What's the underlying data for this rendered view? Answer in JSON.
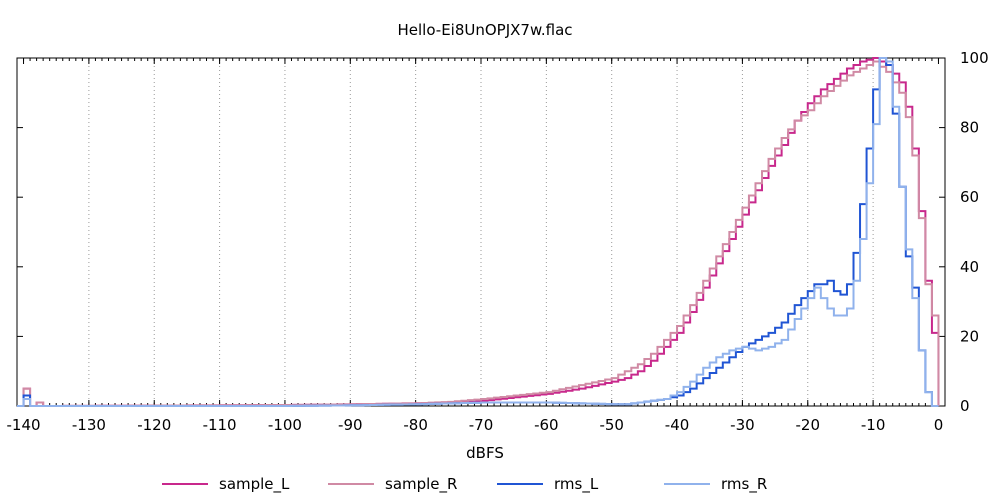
{
  "chart_data": {
    "type": "line",
    "title": "Hello-Ei8UnOPJX7w.flac",
    "xlabel": "dBFS",
    "ylabel": "",
    "xlim": [
      -141,
      1
    ],
    "ylim": [
      0,
      100
    ],
    "x_ticks": [
      -140,
      -130,
      -120,
      -110,
      -100,
      -90,
      -80,
      -70,
      -60,
      -50,
      -40,
      -30,
      -20,
      -10,
      0
    ],
    "x_tick_labels": [
      "-140",
      "-130",
      "-120",
      "-110",
      "-100",
      "-90",
      "-80",
      "-70",
      "-60",
      "-50",
      "-40",
      "-30",
      "-20",
      "-10",
      "0"
    ],
    "y_ticks": [
      0,
      20,
      40,
      60,
      80,
      100
    ],
    "y_tick_labels": [
      "0",
      "20",
      "40",
      "60",
      "80",
      "100"
    ],
    "y_axis_side": "right",
    "grid": "vertical-dotted",
    "legend_position": "bottom",
    "step_width": 1,
    "series": [
      {
        "name": "sample_L",
        "color": "#c8288c",
        "points": [
          [
            -141,
            0
          ],
          [
            -140,
            5
          ],
          [
            -139,
            0
          ],
          [
            -138,
            1
          ],
          [
            -137,
            0
          ],
          [
            -110,
            0.2
          ],
          [
            -100,
            0.3
          ],
          [
            -90,
            0.5
          ],
          [
            -80,
            0.8
          ],
          [
            -75,
            1
          ],
          [
            -70,
            1.5
          ],
          [
            -65,
            2.5
          ],
          [
            -60,
            3.5
          ],
          [
            -55,
            5
          ],
          [
            -50,
            7
          ],
          [
            -48,
            8
          ],
          [
            -46,
            10
          ],
          [
            -44,
            13
          ],
          [
            -42,
            17
          ],
          [
            -40,
            21
          ],
          [
            -38,
            27
          ],
          [
            -36,
            34
          ],
          [
            -34,
            41
          ],
          [
            -32,
            48
          ],
          [
            -30,
            55
          ],
          [
            -28,
            62
          ],
          [
            -26,
            69
          ],
          [
            -24,
            75
          ],
          [
            -22,
            82
          ],
          [
            -20,
            87
          ],
          [
            -18,
            91
          ],
          [
            -16,
            94
          ],
          [
            -14,
            97
          ],
          [
            -12,
            99
          ],
          [
            -10,
            100
          ],
          [
            -8,
            98
          ],
          [
            -6,
            93
          ],
          [
            -5,
            86
          ],
          [
            -4,
            74
          ],
          [
            -3,
            56
          ],
          [
            -2,
            36
          ],
          [
            -1,
            21
          ],
          [
            0,
            0
          ]
        ]
      },
      {
        "name": "sample_R",
        "color": "#d08aa4",
        "points": [
          [
            -141,
            0
          ],
          [
            -140,
            5
          ],
          [
            -139,
            0
          ],
          [
            -138,
            1
          ],
          [
            -137,
            0
          ],
          [
            -110,
            0.2
          ],
          [
            -100,
            0.3
          ],
          [
            -90,
            0.5
          ],
          [
            -80,
            0.8
          ],
          [
            -75,
            1.2
          ],
          [
            -70,
            2
          ],
          [
            -65,
            3
          ],
          [
            -60,
            4
          ],
          [
            -55,
            6
          ],
          [
            -50,
            8
          ],
          [
            -48,
            10
          ],
          [
            -46,
            12
          ],
          [
            -44,
            15
          ],
          [
            -42,
            19
          ],
          [
            -40,
            23
          ],
          [
            -38,
            29
          ],
          [
            -36,
            36
          ],
          [
            -34,
            43
          ],
          [
            -32,
            50
          ],
          [
            -30,
            57
          ],
          [
            -28,
            64
          ],
          [
            -26,
            71
          ],
          [
            -24,
            77
          ],
          [
            -22,
            82
          ],
          [
            -20,
            85
          ],
          [
            -18,
            89
          ],
          [
            -16,
            92
          ],
          [
            -14,
            95
          ],
          [
            -12,
            97
          ],
          [
            -10,
            99
          ],
          [
            -8,
            96
          ],
          [
            -6,
            90
          ],
          [
            -5,
            83
          ],
          [
            -4,
            72
          ],
          [
            -3,
            54
          ],
          [
            -2,
            35
          ],
          [
            -1,
            26
          ],
          [
            0,
            0
          ]
        ]
      },
      {
        "name": "rms_L",
        "color": "#2055d4",
        "points": [
          [
            -141,
            0
          ],
          [
            -140,
            3
          ],
          [
            -139,
            0
          ],
          [
            -120,
            0
          ],
          [
            -100,
            0
          ],
          [
            -90,
            0.2
          ],
          [
            -80,
            0.5
          ],
          [
            -70,
            1
          ],
          [
            -60,
            1
          ],
          [
            -50,
            0.5
          ],
          [
            -48,
            0.5
          ],
          [
            -46,
            1
          ],
          [
            -44,
            1.5
          ],
          [
            -42,
            2
          ],
          [
            -40,
            3
          ],
          [
            -38,
            5
          ],
          [
            -36,
            8
          ],
          [
            -34,
            11
          ],
          [
            -32,
            14
          ],
          [
            -30,
            17
          ],
          [
            -28,
            19
          ],
          [
            -26,
            21
          ],
          [
            -24,
            24
          ],
          [
            -22,
            29
          ],
          [
            -20,
            33
          ],
          [
            -19,
            35
          ],
          [
            -18,
            35
          ],
          [
            -17,
            36
          ],
          [
            -16,
            33
          ],
          [
            -15,
            32
          ],
          [
            -14,
            35
          ],
          [
            -13,
            44
          ],
          [
            -12,
            58
          ],
          [
            -11,
            74
          ],
          [
            -10,
            91
          ],
          [
            -9,
            100
          ],
          [
            -8,
            98
          ],
          [
            -7,
            84
          ],
          [
            -6,
            63
          ],
          [
            -5,
            43
          ],
          [
            -4,
            34
          ],
          [
            -3,
            16
          ],
          [
            -2,
            4
          ],
          [
            -1,
            0
          ],
          [
            0,
            0
          ]
        ]
      },
      {
        "name": "rms_R",
        "color": "#90b2ec",
        "points": [
          [
            -141,
            0
          ],
          [
            -140,
            2
          ],
          [
            -139,
            0
          ],
          [
            -120,
            0
          ],
          [
            -100,
            0
          ],
          [
            -90,
            0.2
          ],
          [
            -80,
            0.5
          ],
          [
            -70,
            1
          ],
          [
            -60,
            1
          ],
          [
            -50,
            0.5
          ],
          [
            -48,
            0.5
          ],
          [
            -46,
            1
          ],
          [
            -44,
            1.5
          ],
          [
            -42,
            2
          ],
          [
            -40,
            4
          ],
          [
            -38,
            7
          ],
          [
            -36,
            11
          ],
          [
            -34,
            14
          ],
          [
            -32,
            16
          ],
          [
            -30,
            17
          ],
          [
            -28,
            16
          ],
          [
            -26,
            17
          ],
          [
            -24,
            19
          ],
          [
            -22,
            25
          ],
          [
            -20,
            31
          ],
          [
            -19,
            34
          ],
          [
            -18,
            31
          ],
          [
            -17,
            28
          ],
          [
            -16,
            26
          ],
          [
            -15,
            26
          ],
          [
            -14,
            28
          ],
          [
            -13,
            36
          ],
          [
            -12,
            48
          ],
          [
            -11,
            64
          ],
          [
            -10,
            81
          ],
          [
            -9,
            100
          ],
          [
            -8,
            99
          ],
          [
            -7,
            86
          ],
          [
            -6,
            63
          ],
          [
            -5,
            45
          ],
          [
            -4,
            31
          ],
          [
            -3,
            16
          ],
          [
            -2,
            4
          ],
          [
            -1,
            0
          ],
          [
            0,
            0
          ]
        ]
      }
    ]
  }
}
